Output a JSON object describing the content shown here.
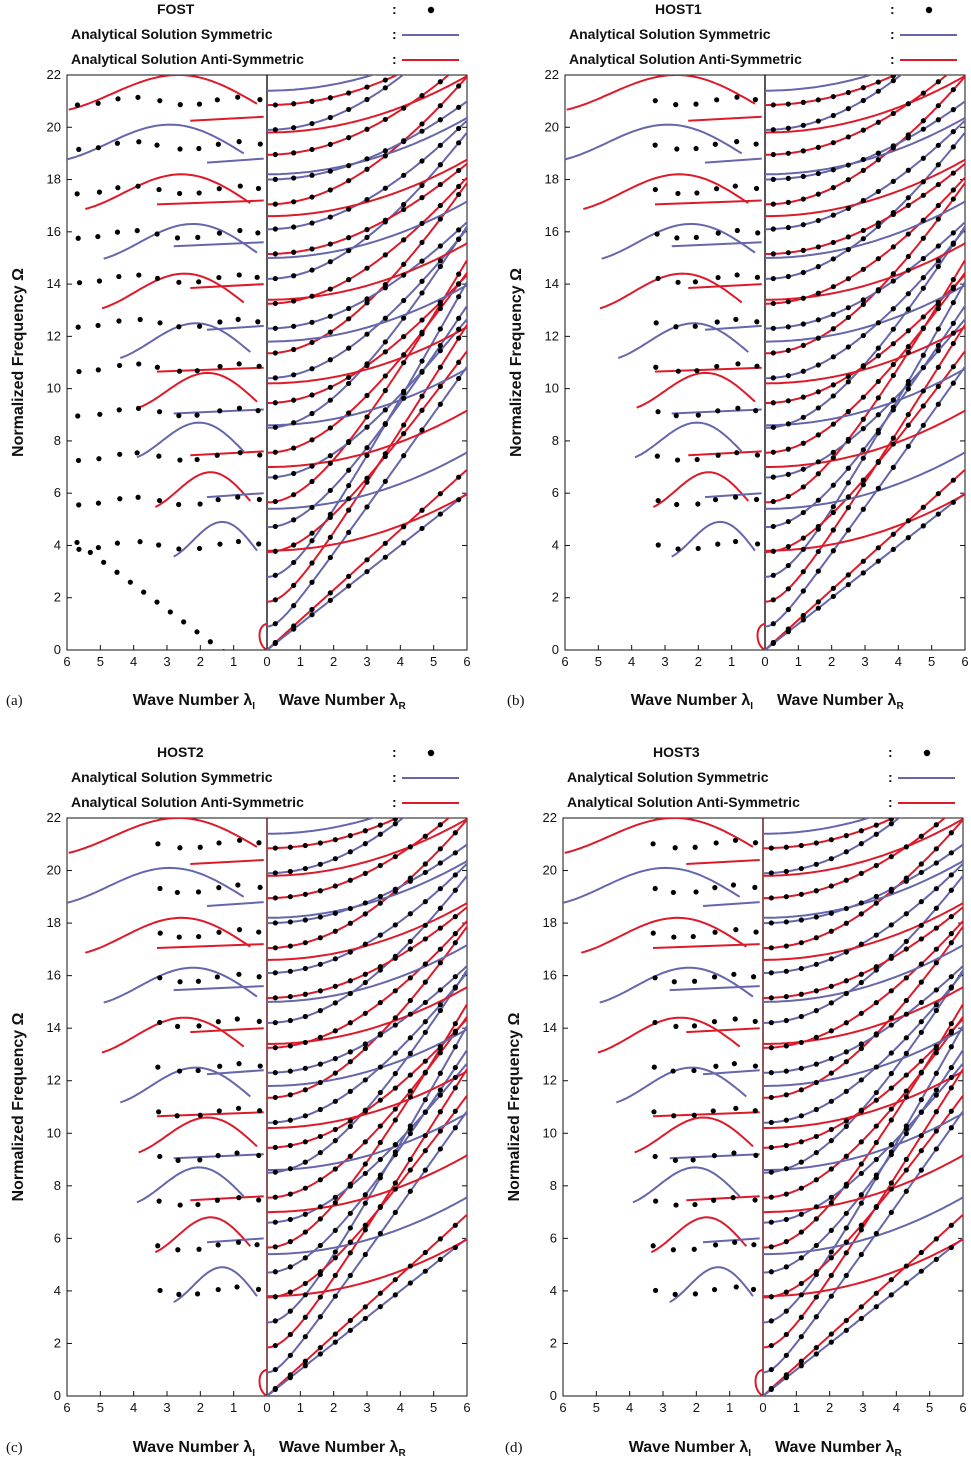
{
  "colors": {
    "symmetric": "#6666aa",
    "anti_symmetric": "#dd1a2a",
    "numerical": "#000000",
    "axis": "#111111",
    "center_line": "#111111"
  },
  "shared_axes": {
    "ylabel": "Normalized Frequency Ω",
    "xlabel_left": "Wave Number λ",
    "xlabel_left_sub": "I",
    "xlabel_right": "Wave Number λ",
    "xlabel_right_sub": "R",
    "y_ticks": [
      "0",
      "2",
      "4",
      "6",
      "8",
      "10",
      "12",
      "14",
      "16",
      "18",
      "20",
      "22"
    ],
    "x_ticks_left": [
      "6",
      "5",
      "4",
      "3",
      "2",
      "1"
    ],
    "x_ticks_right": [
      "0",
      "1",
      "2",
      "3",
      "4",
      "5",
      "6"
    ]
  },
  "legend": {
    "symmetric_label": "Analytical Solution Symmetric",
    "anti_symmetric_label": "Analytical Solution Anti-Symmetric",
    "separator": ":"
  },
  "panels": [
    {
      "tag": "(a)",
      "method": "FOST"
    },
    {
      "tag": "(b)",
      "method": "HOST1"
    },
    {
      "tag": "(c)",
      "method": "HOST2"
    },
    {
      "tag": "(d)",
      "method": "HOST3"
    }
  ],
  "chart_data": [
    {
      "type": "line",
      "panel": "(a)",
      "series_markers": "FOST",
      "ylabel": "Normalized Frequency Ω",
      "xlabel_left": "Wave Number λI",
      "xlabel_right": "Wave Number λR",
      "xlim_imaginary": [
        6,
        0
      ],
      "xlim_real": [
        0,
        6
      ],
      "ylim": [
        0,
        22
      ],
      "legend_position": "top",
      "grid": false
    },
    {
      "type": "line",
      "panel": "(b)",
      "series_markers": "HOST1",
      "ylabel": "Normalized Frequency Ω",
      "xlabel_left": "Wave Number λI",
      "xlabel_right": "Wave Number λR",
      "xlim_imaginary": [
        6,
        0
      ],
      "xlim_real": [
        0,
        6
      ],
      "ylim": [
        0,
        22
      ],
      "legend_position": "top",
      "grid": false
    },
    {
      "type": "line",
      "panel": "(c)",
      "series_markers": "HOST2",
      "ylabel": "Normalized Frequency Ω",
      "xlabel_left": "Wave Number λI",
      "xlabel_right": "Wave Number λR",
      "xlim_imaginary": [
        6,
        0
      ],
      "xlim_real": [
        0,
        6
      ],
      "ylim": [
        0,
        22
      ],
      "legend_position": "top",
      "grid": false
    },
    {
      "type": "line",
      "panel": "(d)",
      "series_markers": "HOST3",
      "ylabel": "Normalized Frequency Ω",
      "xlabel_left": "Wave Number λI",
      "xlabel_right": "Wave Number λR",
      "xlim_imaginary": [
        6,
        0
      ],
      "xlim_real": [
        0,
        6
      ],
      "ylim": [
        0,
        22
      ],
      "legend_position": "top",
      "grid": false
    }
  ]
}
